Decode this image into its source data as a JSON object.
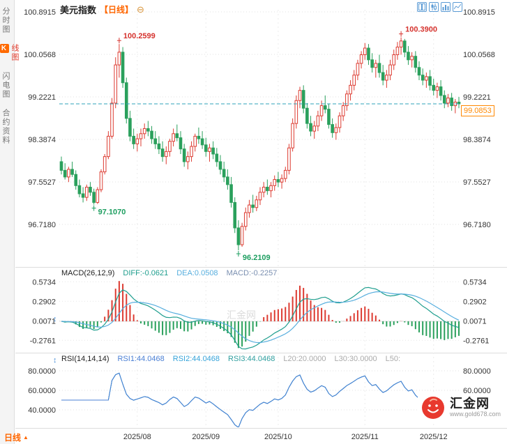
{
  "header": {
    "title": "美元指数",
    "period": "【日线】"
  },
  "icons": {
    "settings": "⊖",
    "panel_resize": "↕",
    "period_dropdown": "▲"
  },
  "toolbar_icons": [
    "layout-icon",
    "candlestick-icon",
    "bar-chart-icon",
    "line-chart-icon"
  ],
  "sidebar": {
    "items": [
      {
        "label": "分时图"
      },
      {
        "label": "K线图",
        "badge": "K",
        "rest": "线图",
        "active": true
      },
      {
        "label": "闪电图"
      },
      {
        "label": "合约资料"
      }
    ]
  },
  "macd_header": {
    "name": "MACD(26,12,9)",
    "diff": "DIFF:-0.0621",
    "dea": "DEA:0.0508",
    "macd": "MACD:-0.2257"
  },
  "rsi_header": {
    "name": "RSI(14,14,14)",
    "rsi1": "RSI1:44.0468",
    "rsi2": "RSI2:44.0468",
    "rsi3": "RSI3:44.0468",
    "l20": "L20:20.0000",
    "l30": "L30:30.0000",
    "l50": "L50:"
  },
  "price_tag": "99.0853",
  "bottom_bar": {
    "period": "日线"
  },
  "watermark": "汇金网",
  "logo": {
    "name": "汇金网",
    "site": "www.gold678.com"
  },
  "chart_data": {
    "type": "candlestick",
    "title": "美元指数【日线】",
    "colors": {
      "up": "#dd3b31",
      "down": "#2aa05c",
      "price_line": "#2fa3b8",
      "ann_high": "#d5322d",
      "ann_low": "#1d9e60",
      "macd_diff": "#1f9e8e",
      "macd_dea": "#57aede",
      "rsi1": "#4a7fd4",
      "rsi2": "#36a3d9",
      "rsi3": "#2e9e9e"
    },
    "months": [
      {
        "label": "2025/08",
        "index": 21
      },
      {
        "label": "2025/09",
        "index": 40
      },
      {
        "label": "2025/10",
        "index": 60
      },
      {
        "label": "2025/11",
        "index": 84
      },
      {
        "label": "2025/12",
        "index": 103
      }
    ],
    "main": {
      "yticks": [
        100.8915,
        100.0568,
        99.2221,
        98.3874,
        97.5527,
        96.718
      ],
      "current_price": 99.0853,
      "annotations": [
        {
          "text": "100.2599",
          "index": 16,
          "price": 100.2599,
          "type": "high"
        },
        {
          "text": "100.3900",
          "index": 94,
          "price": 100.39,
          "type": "high"
        },
        {
          "text": "97.1070",
          "index": 9,
          "price": 97.107,
          "type": "low"
        },
        {
          "text": "96.2109",
          "index": 49,
          "price": 96.2109,
          "type": "low"
        }
      ]
    },
    "candles": [
      [
        97.95,
        98.05,
        97.7,
        97.78
      ],
      [
        97.78,
        97.92,
        97.6,
        97.65
      ],
      [
        97.65,
        97.85,
        97.55,
        97.8
      ],
      [
        97.8,
        97.95,
        97.65,
        97.7
      ],
      [
        97.7,
        97.78,
        97.4,
        97.48
      ],
      [
        97.48,
        97.6,
        97.25,
        97.32
      ],
      [
        97.32,
        97.45,
        97.15,
        97.25
      ],
      [
        97.25,
        97.5,
        97.18,
        97.45
      ],
      [
        97.45,
        97.55,
        97.28,
        97.35
      ],
      [
        97.35,
        97.42,
        97.107,
        97.15
      ],
      [
        97.15,
        97.45,
        97.12,
        97.4
      ],
      [
        97.4,
        97.8,
        97.35,
        97.75
      ],
      [
        97.75,
        98.1,
        97.7,
        98.05
      ],
      [
        98.05,
        98.55,
        98.0,
        98.45
      ],
      [
        98.45,
        99.2,
        98.4,
        99.1
      ],
      [
        99.1,
        100.0,
        99.0,
        99.85
      ],
      [
        99.85,
        100.2599,
        99.6,
        100.1
      ],
      [
        100.1,
        100.2,
        99.4,
        99.5
      ],
      [
        99.5,
        99.6,
        98.7,
        98.8
      ],
      [
        98.8,
        98.95,
        98.35,
        98.45
      ],
      [
        98.45,
        98.6,
        98.2,
        98.3
      ],
      [
        98.3,
        98.5,
        98.15,
        98.4
      ],
      [
        98.4,
        98.6,
        98.25,
        98.5
      ],
      [
        98.5,
        98.7,
        98.4,
        98.6
      ],
      [
        98.6,
        98.75,
        98.45,
        98.55
      ],
      [
        98.55,
        98.65,
        98.3,
        98.4
      ],
      [
        98.4,
        98.55,
        98.2,
        98.3
      ],
      [
        98.3,
        98.45,
        98.1,
        98.2
      ],
      [
        98.2,
        98.35,
        97.95,
        98.05
      ],
      [
        98.05,
        98.25,
        97.9,
        98.15
      ],
      [
        98.15,
        98.4,
        98.05,
        98.35
      ],
      [
        98.35,
        98.6,
        98.25,
        98.5
      ],
      [
        98.5,
        98.68,
        98.35,
        98.42
      ],
      [
        98.42,
        98.55,
        98.1,
        98.2
      ],
      [
        98.2,
        98.3,
        97.85,
        97.95
      ],
      [
        97.95,
        98.15,
        97.8,
        98.05
      ],
      [
        98.05,
        98.35,
        97.95,
        98.25
      ],
      [
        98.25,
        98.5,
        98.15,
        98.45
      ],
      [
        98.45,
        98.62,
        98.3,
        98.4
      ],
      [
        98.4,
        98.55,
        98.2,
        98.28
      ],
      [
        98.28,
        98.42,
        98.05,
        98.15
      ],
      [
        98.15,
        98.3,
        97.95,
        98.22
      ],
      [
        98.22,
        98.35,
        98.0,
        98.1
      ],
      [
        98.1,
        98.22,
        97.85,
        97.95
      ],
      [
        97.95,
        98.08,
        97.7,
        97.8
      ],
      [
        97.8,
        97.95,
        97.55,
        97.65
      ],
      [
        97.65,
        97.8,
        97.4,
        97.5
      ],
      [
        97.5,
        97.65,
        97.05,
        97.15
      ],
      [
        97.15,
        97.25,
        96.55,
        96.65
      ],
      [
        96.65,
        96.8,
        96.2109,
        96.32
      ],
      [
        96.32,
        96.75,
        96.28,
        96.68
      ],
      [
        96.68,
        97.05,
        96.6,
        96.95
      ],
      [
        96.95,
        97.2,
        96.85,
        97.1
      ],
      [
        97.1,
        97.3,
        96.95,
        97.05
      ],
      [
        97.05,
        97.28,
        96.98,
        97.2
      ],
      [
        97.2,
        97.45,
        97.1,
        97.35
      ],
      [
        97.35,
        97.55,
        97.25,
        97.45
      ],
      [
        97.45,
        97.6,
        97.3,
        97.38
      ],
      [
        97.38,
        97.55,
        97.25,
        97.48
      ],
      [
        97.48,
        97.68,
        97.38,
        97.6
      ],
      [
        97.6,
        97.75,
        97.45,
        97.55
      ],
      [
        97.55,
        97.7,
        97.42,
        97.62
      ],
      [
        97.62,
        97.85,
        97.55,
        97.78
      ],
      [
        97.78,
        98.3,
        97.7,
        98.22
      ],
      [
        98.22,
        98.8,
        98.15,
        98.7
      ],
      [
        98.7,
        99.25,
        98.6,
        99.15
      ],
      [
        99.15,
        99.42,
        99.0,
        99.35
      ],
      [
        99.35,
        99.45,
        98.9,
        99.0
      ],
      [
        99.0,
        99.1,
        98.6,
        98.7
      ],
      [
        98.7,
        98.85,
        98.45,
        98.55
      ],
      [
        98.55,
        98.75,
        98.4,
        98.65
      ],
      [
        98.65,
        98.95,
        98.55,
        98.85
      ],
      [
        98.85,
        99.15,
        98.75,
        99.05
      ],
      [
        99.05,
        99.25,
        98.9,
        98.98
      ],
      [
        98.98,
        99.08,
        98.6,
        98.68
      ],
      [
        98.68,
        98.8,
        98.42,
        98.52
      ],
      [
        98.52,
        98.7,
        98.38,
        98.62
      ],
      [
        98.62,
        98.92,
        98.52,
        98.85
      ],
      [
        98.85,
        99.12,
        98.75,
        99.05
      ],
      [
        99.05,
        99.35,
        98.95,
        99.28
      ],
      [
        99.28,
        99.55,
        99.15,
        99.45
      ],
      [
        99.45,
        99.75,
        99.35,
        99.65
      ],
      [
        99.65,
        99.95,
        99.55,
        99.88
      ],
      [
        99.88,
        100.12,
        99.78,
        100.05
      ],
      [
        100.05,
        100.28,
        99.95,
        100.18
      ],
      [
        100.18,
        100.26,
        99.85,
        99.95
      ],
      [
        99.95,
        100.08,
        99.7,
        99.8
      ],
      [
        99.8,
        99.95,
        99.6,
        99.88
      ],
      [
        99.88,
        100.05,
        99.6,
        99.7
      ],
      [
        99.7,
        99.85,
        99.45,
        99.55
      ],
      [
        99.55,
        99.75,
        99.4,
        99.65
      ],
      [
        99.65,
        99.95,
        99.55,
        99.85
      ],
      [
        99.85,
        100.15,
        99.75,
        100.05
      ],
      [
        100.05,
        100.3,
        99.95,
        100.2
      ],
      [
        100.2,
        100.39,
        100.05,
        100.32
      ],
      [
        100.32,
        100.36,
        100.0,
        100.1
      ],
      [
        100.1,
        100.22,
        99.85,
        99.95
      ],
      [
        99.95,
        100.1,
        99.8,
        100.02
      ],
      [
        100.02,
        100.12,
        99.7,
        99.8
      ],
      [
        99.8,
        99.92,
        99.55,
        99.65
      ],
      [
        99.65,
        99.78,
        99.45,
        99.55
      ],
      [
        99.55,
        99.7,
        99.4,
        99.62
      ],
      [
        99.62,
        99.75,
        99.35,
        99.45
      ],
      [
        99.45,
        99.58,
        99.25,
        99.35
      ],
      [
        99.35,
        99.5,
        99.2,
        99.42
      ],
      [
        99.42,
        99.55,
        99.15,
        99.25
      ],
      [
        99.25,
        99.35,
        99.0,
        99.1
      ],
      [
        99.1,
        99.28,
        99.02,
        99.2
      ],
      [
        99.2,
        99.3,
        98.95,
        99.05
      ],
      [
        99.05,
        99.18,
        98.9,
        99.12
      ],
      [
        99.12,
        99.22,
        99.0,
        99.0853
      ]
    ],
    "macd": {
      "label": "MACD(26,12,9)",
      "fast": 12,
      "slow": 26,
      "signal": 9,
      "diff": -0.0621,
      "dea": 0.0508,
      "macd": -0.2257,
      "yticks": [
        0.5734,
        0.2902,
        0.0071,
        -0.2761
      ]
    },
    "rsi": {
      "label": "RSI(14,14,14)",
      "periods": [
        14,
        14,
        14
      ],
      "values": [
        44.0468,
        44.0468,
        44.0468
      ],
      "yticks": [
        80,
        60,
        40
      ],
      "levels": {
        "L20": 20.0,
        "L30": 30.0
      }
    }
  }
}
